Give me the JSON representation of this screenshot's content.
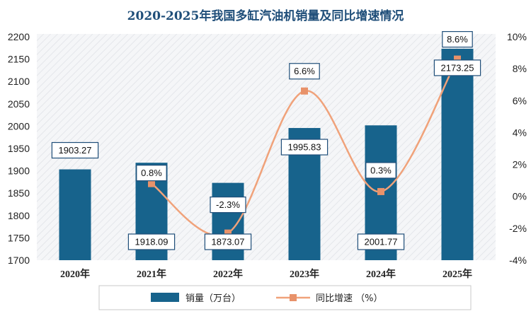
{
  "chart_data": {
    "type": "bar",
    "title": "2020-2025年我国多缸汽油机销量及同比增速情况",
    "categories": [
      "2020年",
      "2021年",
      "2022年",
      "2023年",
      "2024年",
      "2025年"
    ],
    "series": [
      {
        "name": "销量（万台）",
        "type": "bar",
        "axis": "left",
        "values": [
          1903.27,
          1918.09,
          1873.07,
          1995.83,
          2001.77,
          2173.25
        ],
        "labels": [
          "1903.27",
          "1918.09",
          "1873.07",
          "1995.83",
          "2001.77",
          "2173.25"
        ]
      },
      {
        "name": "同比增速（%）",
        "type": "line",
        "axis": "right",
        "values": [
          null,
          0.8,
          -2.3,
          6.6,
          0.3,
          8.6
        ],
        "labels": [
          "",
          "0.8%",
          "-2.3%",
          "6.6%",
          "0.3%",
          "8.6%"
        ]
      }
    ],
    "ylim": [
      1700,
      2200
    ],
    "yticks": [
      "1700",
      "1750",
      "1800",
      "1850",
      "1900",
      "1950",
      "2000",
      "2050",
      "2100",
      "2150",
      "2200"
    ],
    "y2lim": [
      -4,
      10
    ],
    "y2ticks": [
      "-4%",
      "-2%",
      "0%",
      "2%",
      "4%",
      "6%",
      "8%",
      "10%"
    ],
    "legend": {
      "bar_label": "销量（万台）",
      "line_label": "同比增速  （%）"
    },
    "legend_position": "bottom-center",
    "grid": false
  },
  "colors": {
    "bar": "#17638c",
    "line": "#f0a27a",
    "marker": "#e8926a",
    "title": "#1f4e79",
    "label_border": "#1f4e79"
  }
}
